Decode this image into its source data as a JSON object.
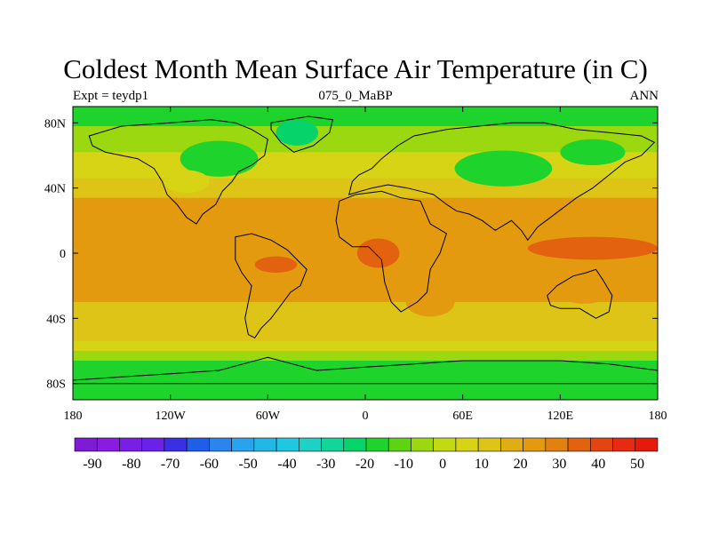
{
  "title": "Coldest Month Mean Surface Air Temperature (in C)",
  "subtitle_left": "Expt = teydp1",
  "subtitle_center": "075_0_MaBP",
  "subtitle_right": "ANN",
  "map": {
    "projection": "cylindrical-equidistant",
    "lon_range": [
      -180,
      180
    ],
    "lat_range": [
      -90,
      90
    ],
    "lon_ticks": [
      {
        "value": -180,
        "label": "180"
      },
      {
        "value": -120,
        "label": "120W"
      },
      {
        "value": -60,
        "label": "60W"
      },
      {
        "value": 0,
        "label": "0"
      },
      {
        "value": 60,
        "label": "60E"
      },
      {
        "value": 120,
        "label": "120E"
      },
      {
        "value": 180,
        "label": "180"
      }
    ],
    "lat_ticks": [
      {
        "value": 80,
        "label": "80N"
      },
      {
        "value": 40,
        "label": "40N"
      },
      {
        "value": 0,
        "label": "0"
      },
      {
        "value": -40,
        "label": "40S"
      },
      {
        "value": -80,
        "label": "80S"
      }
    ],
    "colors": [
      "#7f1ad6",
      "#8a1be3",
      "#7a1ee6",
      "#6a22ea",
      "#3b2fe3",
      "#1f5ee8",
      "#2a86ee",
      "#2aa3ee",
      "#22b8e6",
      "#1fc8e0",
      "#1fd0c4",
      "#10d69a",
      "#06d46a",
      "#1ed32b",
      "#5cd414",
      "#9cd80f",
      "#c2da12",
      "#d6d414",
      "#ddc416",
      "#e0ad14",
      "#e39a0f",
      "#e28010",
      "#e2620f",
      "#e44510",
      "#e62a14",
      "#e6190d"
    ],
    "boundaries": [
      -90,
      -80,
      -70,
      -60,
      -50,
      -40,
      -30,
      -20,
      -10,
      0,
      10,
      20,
      30,
      40,
      50
    ],
    "bands": [
      {
        "lat_from": 90,
        "lat_to": 86,
        "temperature": -20
      },
      {
        "lat_from": 86,
        "lat_to": 78,
        "temperature": -12
      },
      {
        "lat_from": 78,
        "lat_to": 62,
        "temperature": -3
      },
      {
        "lat_from": 62,
        "lat_to": 46,
        "temperature": 8
      },
      {
        "lat_from": 46,
        "lat_to": 34,
        "temperature": 16
      },
      {
        "lat_from": 34,
        "lat_to": 24,
        "temperature": 22
      },
      {
        "lat_from": 24,
        "lat_to": -18,
        "temperature": 27
      },
      {
        "lat_from": -18,
        "lat_to": -30,
        "temperature": 22
      },
      {
        "lat_from": -30,
        "lat_to": -44,
        "temperature": 17
      },
      {
        "lat_from": -44,
        "lat_to": -54,
        "temperature": 10
      },
      {
        "lat_from": -54,
        "lat_to": -60,
        "temperature": 4
      },
      {
        "lat_from": -60,
        "lat_to": -66,
        "temperature": -3
      },
      {
        "lat_from": -66,
        "lat_to": -78,
        "temperature": -12
      },
      {
        "lat_from": -78,
        "lat_to": -90,
        "temperature": -18
      }
    ],
    "patches": [
      {
        "lon": 85,
        "lat": 52,
        "w": 60,
        "h": 22,
        "temperature": -16
      },
      {
        "lon": 140,
        "lat": 62,
        "w": 40,
        "h": 16,
        "temperature": -20
      },
      {
        "lon": -90,
        "lat": 58,
        "w": 48,
        "h": 22,
        "temperature": -14
      },
      {
        "lon": -110,
        "lat": 44,
        "w": 28,
        "h": 14,
        "temperature": 0
      },
      {
        "lon": -42,
        "lat": 74,
        "w": 26,
        "h": 16,
        "temperature": -22
      },
      {
        "lon": 140,
        "lat": 3,
        "w": 80,
        "h": 14,
        "temperature": 35
      },
      {
        "lon": 8,
        "lat": 0,
        "w": 26,
        "h": 18,
        "temperature": 36
      },
      {
        "lon": -55,
        "lat": -7,
        "w": 26,
        "h": 10,
        "temperature": 33
      },
      {
        "lon": 40,
        "lat": -30,
        "w": 30,
        "h": 18,
        "temperature": 20
      },
      {
        "lon": 135,
        "lat": -22,
        "w": 36,
        "h": 18,
        "temperature": 20
      }
    ],
    "continents": [
      {
        "name": "north-america",
        "points": [
          [
            -170,
            72
          ],
          [
            -150,
            78
          ],
          [
            -120,
            80
          ],
          [
            -95,
            82
          ],
          [
            -80,
            80
          ],
          [
            -70,
            76
          ],
          [
            -60,
            70
          ],
          [
            -62,
            60
          ],
          [
            -70,
            54
          ],
          [
            -78,
            50
          ],
          [
            -82,
            44
          ],
          [
            -88,
            38
          ],
          [
            -92,
            30
          ],
          [
            -100,
            24
          ],
          [
            -104,
            18
          ],
          [
            -110,
            22
          ],
          [
            -116,
            30
          ],
          [
            -122,
            36
          ],
          [
            -125,
            44
          ],
          [
            -130,
            52
          ],
          [
            -140,
            58
          ],
          [
            -150,
            60
          ],
          [
            -160,
            62
          ],
          [
            -168,
            66
          ]
        ]
      },
      {
        "name": "greenland",
        "points": [
          [
            -58,
            80
          ],
          [
            -35,
            84
          ],
          [
            -20,
            82
          ],
          [
            -22,
            74
          ],
          [
            -32,
            66
          ],
          [
            -44,
            62
          ],
          [
            -52,
            68
          ],
          [
            -58,
            76
          ]
        ]
      },
      {
        "name": "south-america",
        "points": [
          [
            -80,
            10
          ],
          [
            -70,
            12
          ],
          [
            -58,
            8
          ],
          [
            -48,
            2
          ],
          [
            -40,
            -6
          ],
          [
            -36,
            -10
          ],
          [
            -40,
            -20
          ],
          [
            -46,
            -24
          ],
          [
            -52,
            -32
          ],
          [
            -58,
            -40
          ],
          [
            -64,
            -46
          ],
          [
            -68,
            -52
          ],
          [
            -72,
            -50
          ],
          [
            -74,
            -40
          ],
          [
            -72,
            -30
          ],
          [
            -70,
            -20
          ],
          [
            -76,
            -12
          ],
          [
            -80,
            -4
          ],
          [
            -80,
            4
          ]
        ]
      },
      {
        "name": "eurasia",
        "points": [
          [
            -10,
            36
          ],
          [
            -8,
            44
          ],
          [
            -4,
            48
          ],
          [
            4,
            52
          ],
          [
            10,
            58
          ],
          [
            20,
            66
          ],
          [
            30,
            72
          ],
          [
            50,
            76
          ],
          [
            70,
            78
          ],
          [
            90,
            80
          ],
          [
            110,
            80
          ],
          [
            130,
            76
          ],
          [
            150,
            74
          ],
          [
            170,
            72
          ],
          [
            178,
            68
          ],
          [
            170,
            60
          ],
          [
            160,
            56
          ],
          [
            150,
            48
          ],
          [
            140,
            40
          ],
          [
            130,
            34
          ],
          [
            122,
            28
          ],
          [
            114,
            22
          ],
          [
            106,
            16
          ],
          [
            100,
            8
          ],
          [
            96,
            14
          ],
          [
            90,
            20
          ],
          [
            80,
            14
          ],
          [
            72,
            20
          ],
          [
            64,
            24
          ],
          [
            56,
            26
          ],
          [
            50,
            30
          ],
          [
            42,
            36
          ],
          [
            34,
            38
          ],
          [
            26,
            40
          ],
          [
            14,
            42
          ],
          [
            4,
            40
          ]
        ]
      },
      {
        "name": "africa",
        "points": [
          [
            -18,
            20
          ],
          [
            -16,
            32
          ],
          [
            -6,
            36
          ],
          [
            10,
            38
          ],
          [
            22,
            34
          ],
          [
            34,
            32
          ],
          [
            40,
            18
          ],
          [
            50,
            12
          ],
          [
            46,
            0
          ],
          [
            40,
            -10
          ],
          [
            38,
            -24
          ],
          [
            32,
            -30
          ],
          [
            22,
            -36
          ],
          [
            16,
            -30
          ],
          [
            12,
            -18
          ],
          [
            10,
            -4
          ],
          [
            2,
            4
          ],
          [
            -8,
            4
          ],
          [
            -16,
            10
          ]
        ]
      },
      {
        "name": "australia",
        "points": [
          [
            112,
            -26
          ],
          [
            118,
            -20
          ],
          [
            128,
            -14
          ],
          [
            136,
            -12
          ],
          [
            142,
            -10
          ],
          [
            146,
            -16
          ],
          [
            152,
            -26
          ],
          [
            150,
            -36
          ],
          [
            142,
            -40
          ],
          [
            132,
            -34
          ],
          [
            120,
            -34
          ],
          [
            114,
            -32
          ]
        ]
      },
      {
        "name": "antarctica",
        "points": [
          [
            -180,
            -80
          ],
          [
            -180,
            -78
          ],
          [
            -150,
            -76
          ],
          [
            -120,
            -74
          ],
          [
            -90,
            -72
          ],
          [
            -60,
            -64
          ],
          [
            -30,
            -72
          ],
          [
            0,
            -70
          ],
          [
            30,
            -68
          ],
          [
            60,
            -66
          ],
          [
            90,
            -66
          ],
          [
            120,
            -66
          ],
          [
            150,
            -68
          ],
          [
            180,
            -72
          ],
          [
            180,
            -80
          ]
        ]
      }
    ]
  },
  "colorbar": {
    "labels": [
      "-90",
      "-80",
      "-70",
      "-60",
      "-50",
      "-40",
      "-30",
      "-20",
      "-10",
      "0",
      "10",
      "20",
      "30",
      "40",
      "50"
    ]
  }
}
